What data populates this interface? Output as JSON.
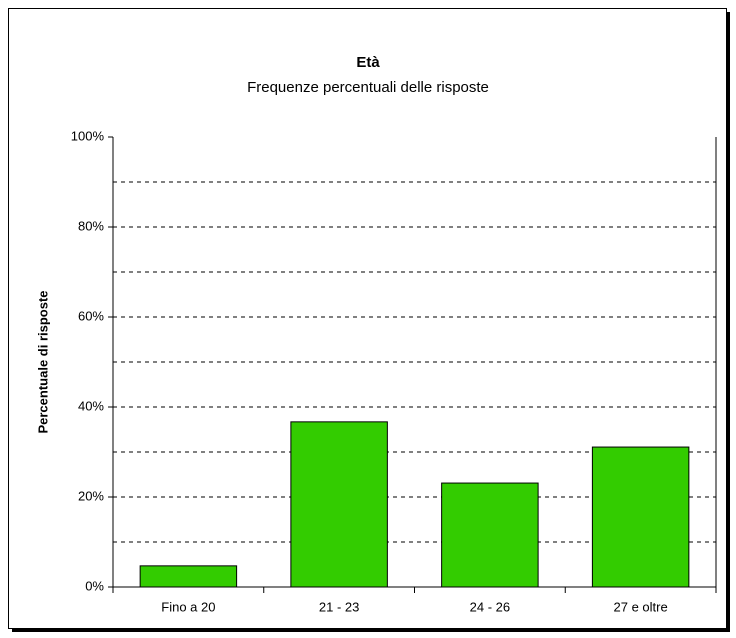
{
  "chart_data": {
    "type": "bar",
    "title": "Età",
    "subtitle": "Frequenze percentuali delle risposte",
    "y_label": "Percentuale di risposte",
    "categories": [
      "Fino a 20",
      "21 - 23",
      "24 - 26",
      "27 e oltre"
    ],
    "values": [
      4.7,
      36.7,
      23.1,
      31.1
    ],
    "color": "#33cc00",
    "ylim": [
      0,
      100
    ],
    "yticks": [
      {
        "value": 0,
        "label": "0%"
      },
      {
        "value": 20,
        "label": "20%"
      },
      {
        "value": 40,
        "label": "40%"
      },
      {
        "value": 60,
        "label": "60%"
      },
      {
        "value": 80,
        "label": "80%"
      },
      {
        "value": 100,
        "label": "100%"
      }
    ],
    "gridlines": [
      10,
      20,
      30,
      40,
      50,
      60,
      70,
      80,
      90
    ],
    "grid": true
  }
}
